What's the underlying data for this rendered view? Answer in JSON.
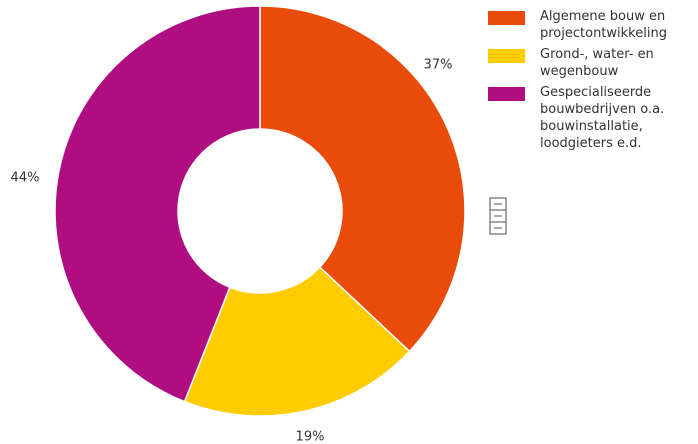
{
  "chart_data": {
    "type": "donut",
    "series": [
      {
        "name": "Algemene bouw en projectontwikkeling",
        "color": "#e94c0a",
        "values": [
          37
        ],
        "value_labels": [
          "37%"
        ]
      },
      {
        "name": "Grond-, water- en wegenbouw",
        "color": "#ffcc00",
        "values": [
          19
        ],
        "value_labels": [
          "19%"
        ]
      },
      {
        "name": "Gespecialiseerde bouwbedrijven o.a. bouwinstallatie, loodgieters e.d.",
        "color": "#af0e80",
        "values": [
          44
        ],
        "value_labels": [
          "44%"
        ]
      }
    ]
  }
}
